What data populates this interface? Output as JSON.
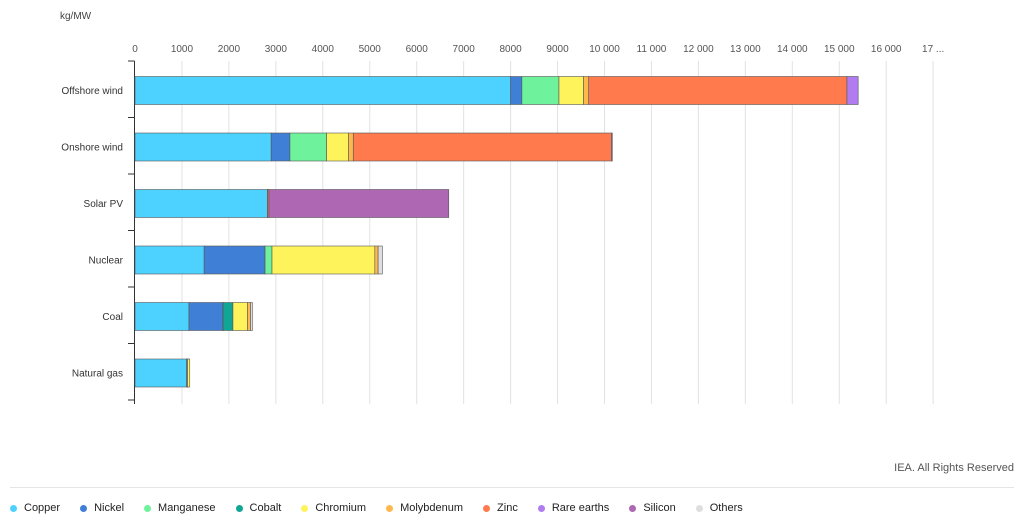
{
  "credit": "IEA. All Rights Reserved",
  "chart_data": {
    "type": "bar",
    "orientation": "horizontal",
    "stacked": true,
    "unit_label": "kg/MW",
    "categories": [
      "Offshore wind",
      "Onshore wind",
      "Solar PV",
      "Nuclear",
      "Coal",
      "Natural gas"
    ],
    "x_ticks": [
      "0",
      "1000",
      "2000",
      "3000",
      "4000",
      "5000",
      "6000",
      "7000",
      "8000",
      "9000",
      "10 000",
      "11 000",
      "12 000",
      "13 000",
      "14 000",
      "15 000",
      "16 000",
      "17 ..."
    ],
    "xlim": [
      0,
      17000
    ],
    "grid": true,
    "legend_position": "bottom",
    "series": [
      {
        "name": "Copper",
        "color": "#4dd2ff",
        "values": [
          8000,
          2900,
          2822,
          1473,
          1150,
          1100
        ]
      },
      {
        "name": "Nickel",
        "color": "#3f7fd6",
        "values": [
          240,
          400,
          1,
          1297,
          721,
          16
        ]
      },
      {
        "name": "Manganese",
        "color": "#6ef29b",
        "values": [
          790,
          780,
          0,
          148,
          5,
          0
        ]
      },
      {
        "name": "Cobalt",
        "color": "#10a595",
        "values": [
          0,
          0,
          0,
          0,
          210,
          2
        ]
      },
      {
        "name": "Chromium",
        "color": "#fff35c",
        "values": [
          525,
          470,
          0,
          2190,
          308,
          48
        ]
      },
      {
        "name": "Molybdenum",
        "color": "#ffb84d",
        "values": [
          109,
          99,
          0,
          70,
          66,
          0
        ]
      },
      {
        "name": "Zinc",
        "color": "#ff7a4d",
        "values": [
          5500,
          5500,
          30,
          0,
          0,
          0
        ]
      },
      {
        "name": "Rare earths",
        "color": "#b07cf0",
        "values": [
          239,
          14,
          0,
          0,
          0,
          0
        ]
      },
      {
        "name": "Silicon",
        "color": "#ad67b3",
        "values": [
          0,
          0,
          3830,
          0,
          0,
          0
        ]
      },
      {
        "name": "Others",
        "color": "#dedede",
        "values": [
          0,
          0,
          0,
          90,
          40,
          0
        ]
      }
    ]
  }
}
